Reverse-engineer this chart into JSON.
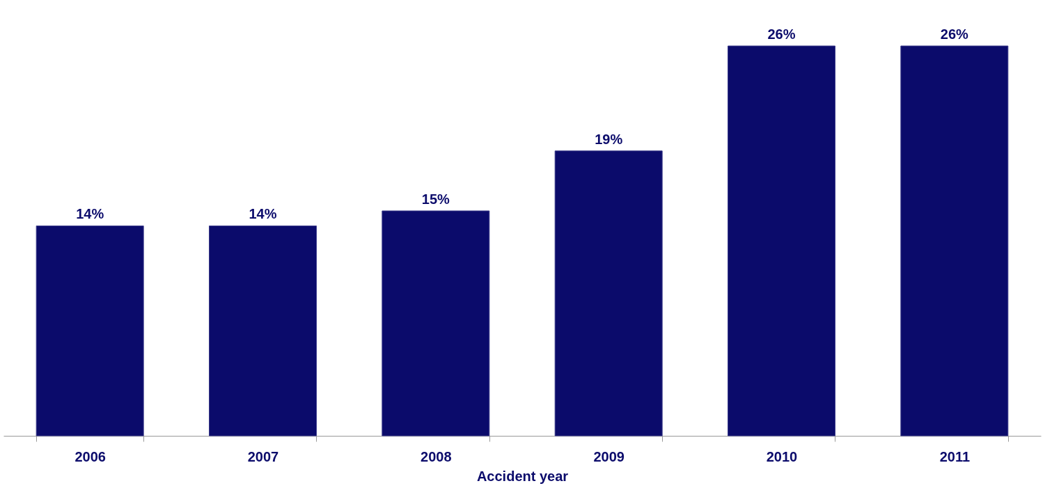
{
  "chart_data": {
    "type": "bar",
    "xlabel": "Accident year",
    "categories": [
      "2006",
      "2007",
      "2008",
      "2009",
      "2010",
      "2011"
    ],
    "values": [
      14,
      14,
      15,
      19,
      26,
      26
    ],
    "value_labels": [
      "14%",
      "14%",
      "15%",
      "19%",
      "26%",
      "26%"
    ],
    "color": "#0b0b6b",
    "tick_labels": "x"
  }
}
